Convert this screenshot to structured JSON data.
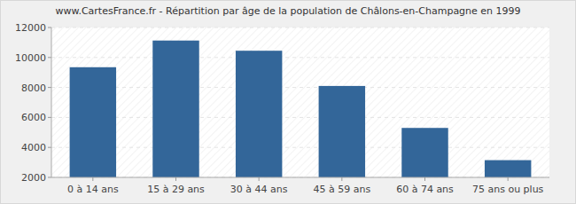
{
  "chart_data": {
    "type": "bar",
    "title": "www.CartesFrance.fr - Répartition par âge de la population de Châlons-en-Champagne en 1999",
    "categories": [
      "0 à 14 ans",
      "15 à 29 ans",
      "30 à 44 ans",
      "45 à 59 ans",
      "60 à 74 ans",
      "75 ans ou plus"
    ],
    "values": [
      9350,
      11130,
      10450,
      8100,
      5300,
      3150
    ],
    "color": "#336699",
    "ylim": [
      2000,
      12000
    ],
    "yticks": [
      2000,
      4000,
      6000,
      8000,
      10000,
      12000
    ],
    "grid": true
  }
}
